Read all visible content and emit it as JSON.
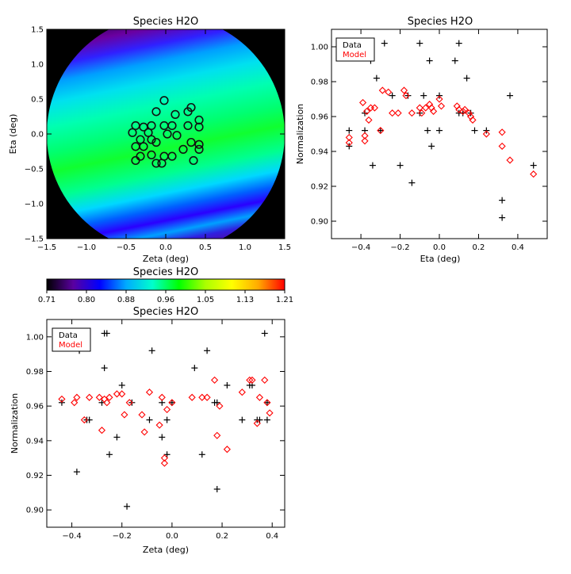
{
  "chart_data": [
    {
      "id": "map",
      "type": "heatmap",
      "title": "Species H2O",
      "xlabel": "Zeta (deg)",
      "ylabel": "Eta (deg)",
      "xlim": [
        -1.5,
        1.5
      ],
      "ylim": [
        -1.5,
        1.5
      ],
      "xticks": [
        -1.5,
        -1.0,
        -0.5,
        0.0,
        0.5,
        1.0,
        1.5
      ],
      "xtick_labels": [
        "−1.5",
        "−1.0",
        "−0.5",
        "0.0",
        "0.5",
        "1.0",
        "1.5"
      ],
      "yticks": [
        -1.5,
        -1.0,
        -0.5,
        0.0,
        0.5,
        1.0,
        1.5
      ],
      "ytick_labels": [
        "−1.5",
        "−1.0",
        "−0.5",
        "0.0",
        "0.5",
        "1.0",
        "1.5"
      ],
      "field_radius_deg": 1.5,
      "band_colors": [
        "#4a0070",
        "#2a30f0",
        "#00c8ff",
        "#00ffb0",
        "#00ff30"
      ],
      "circles": [
        [
          -0.38,
          0.12
        ],
        [
          -0.28,
          0.1
        ],
        [
          -0.18,
          0.12
        ],
        [
          -0.12,
          0.32
        ],
        [
          -0.02,
          0.48
        ],
        [
          0.12,
          0.28
        ],
        [
          0.28,
          0.32
        ],
        [
          0.32,
          0.38
        ],
        [
          0.42,
          0.2
        ],
        [
          0.42,
          0.1
        ],
        [
          -0.42,
          0.02
        ],
        [
          -0.22,
          0.02
        ],
        [
          -0.02,
          0.12
        ],
        [
          0.08,
          0.12
        ],
        [
          0.28,
          0.12
        ],
        [
          -0.32,
          -0.08
        ],
        [
          -0.18,
          -0.08
        ],
        [
          0.02,
          0.0
        ],
        [
          0.14,
          -0.02
        ],
        [
          -0.38,
          -0.18
        ],
        [
          -0.28,
          -0.18
        ],
        [
          -0.12,
          -0.12
        ],
        [
          0.22,
          -0.22
        ],
        [
          0.32,
          -0.12
        ],
        [
          0.42,
          -0.22
        ],
        [
          -0.32,
          -0.32
        ],
        [
          -0.18,
          -0.3
        ],
        [
          -0.02,
          -0.32
        ],
        [
          0.08,
          -0.32
        ],
        [
          -0.38,
          -0.38
        ],
        [
          -0.05,
          -0.42
        ],
        [
          -0.12,
          -0.42
        ],
        [
          0.35,
          -0.38
        ],
        [
          0.42,
          -0.15
        ]
      ]
    },
    {
      "id": "eta_plot",
      "type": "scatter",
      "title": "Species H2O",
      "xlabel": "Eta (deg)",
      "ylabel": "Normalization",
      "xlim": [
        -0.55,
        0.55
      ],
      "ylim": [
        0.89,
        1.01
      ],
      "xticks": [
        -0.4,
        -0.2,
        0.0,
        0.2,
        0.4
      ],
      "xtick_labels": [
        "−0.4",
        "−0.2",
        "0.0",
        "0.2",
        "0.4"
      ],
      "yticks": [
        0.9,
        0.92,
        0.94,
        0.96,
        0.98,
        1.0
      ],
      "ytick_labels": [
        "0.90",
        "0.92",
        "0.94",
        "0.96",
        "0.98",
        "1.00"
      ],
      "legend": {
        "position": "top-left",
        "entries": [
          {
            "label": "Data",
            "color": "#000000"
          },
          {
            "label": "Model",
            "color": "#ff0000"
          }
        ]
      },
      "series": [
        {
          "name": "Data",
          "marker": "plus",
          "color": "#000000",
          "points": [
            [
              -0.46,
              0.952
            ],
            [
              -0.46,
              0.943
            ],
            [
              -0.38,
              0.962
            ],
            [
              -0.38,
              0.952
            ],
            [
              -0.35,
              0.992
            ],
            [
              -0.34,
              0.932
            ],
            [
              -0.32,
              0.982
            ],
            [
              -0.3,
              0.952
            ],
            [
              -0.28,
              1.002
            ],
            [
              -0.24,
              0.972
            ],
            [
              -0.2,
              0.932
            ],
            [
              -0.16,
              0.972
            ],
            [
              -0.14,
              0.922
            ],
            [
              -0.1,
              1.002
            ],
            [
              -0.1,
              0.962
            ],
            [
              -0.08,
              0.972
            ],
            [
              -0.06,
              0.952
            ],
            [
              -0.05,
              0.992
            ],
            [
              -0.04,
              0.943
            ],
            [
              0.0,
              0.972
            ],
            [
              0.0,
              0.952
            ],
            [
              0.08,
              0.992
            ],
            [
              0.1,
              1.002
            ],
            [
              0.1,
              0.962
            ],
            [
              0.12,
              0.962
            ],
            [
              0.14,
              0.982
            ],
            [
              0.16,
              0.962
            ],
            [
              0.18,
              0.952
            ],
            [
              0.24,
              0.952
            ],
            [
              0.32,
              0.912
            ],
            [
              0.32,
              0.902
            ],
            [
              0.36,
              0.972
            ],
            [
              0.48,
              0.932
            ]
          ]
        },
        {
          "name": "Model",
          "marker": "diamond",
          "color": "#ff0000",
          "points": [
            [
              -0.46,
              0.948
            ],
            [
              -0.46,
              0.945
            ],
            [
              -0.39,
              0.968
            ],
            [
              -0.38,
              0.949
            ],
            [
              -0.38,
              0.946
            ],
            [
              -0.37,
              0.963
            ],
            [
              -0.36,
              0.958
            ],
            [
              -0.35,
              0.965
            ],
            [
              -0.33,
              0.965
            ],
            [
              -0.3,
              0.952
            ],
            [
              -0.29,
              0.975
            ],
            [
              -0.26,
              0.974
            ],
            [
              -0.24,
              0.962
            ],
            [
              -0.21,
              0.962
            ],
            [
              -0.18,
              0.975
            ],
            [
              -0.17,
              0.972
            ],
            [
              -0.14,
              0.962
            ],
            [
              -0.1,
              0.965
            ],
            [
              -0.09,
              0.962
            ],
            [
              -0.07,
              0.965
            ],
            [
              -0.05,
              0.967
            ],
            [
              -0.04,
              0.965
            ],
            [
              -0.03,
              0.963
            ],
            [
              0.0,
              0.97
            ],
            [
              0.01,
              0.966
            ],
            [
              0.09,
              0.966
            ],
            [
              0.1,
              0.964
            ],
            [
              0.12,
              0.963
            ],
            [
              0.13,
              0.964
            ],
            [
              0.15,
              0.962
            ],
            [
              0.16,
              0.96
            ],
            [
              0.17,
              0.958
            ],
            [
              0.24,
              0.95
            ],
            [
              0.32,
              0.951
            ],
            [
              0.32,
              0.943
            ],
            [
              0.36,
              0.935
            ],
            [
              0.48,
              0.927
            ]
          ]
        }
      ]
    },
    {
      "id": "zeta_plot",
      "type": "scatter",
      "title": "Species H2O",
      "xlabel": "Zeta (deg)",
      "ylabel": "Normalization",
      "xlim": [
        -0.5,
        0.45
      ],
      "ylim": [
        0.89,
        1.01
      ],
      "xticks": [
        -0.4,
        -0.2,
        0.0,
        0.2,
        0.4
      ],
      "xtick_labels": [
        "−0.4",
        "−0.2",
        "0.0",
        "0.2",
        "0.4"
      ],
      "yticks": [
        0.9,
        0.92,
        0.94,
        0.96,
        0.98,
        1.0
      ],
      "ytick_labels": [
        "0.90",
        "0.92",
        "0.94",
        "0.96",
        "0.98",
        "1.00"
      ],
      "legend": {
        "position": "top-left",
        "entries": [
          {
            "label": "Data",
            "color": "#000000"
          },
          {
            "label": "Model",
            "color": "#ff0000"
          }
        ]
      },
      "series": [
        {
          "name": "Data",
          "marker": "plus",
          "color": "#000000",
          "points": [
            [
              -0.44,
              0.962
            ],
            [
              -0.38,
              0.922
            ],
            [
              -0.37,
              0.992
            ],
            [
              -0.34,
              0.952
            ],
            [
              -0.33,
              0.952
            ],
            [
              -0.28,
              0.962
            ],
            [
              -0.27,
              0.982
            ],
            [
              -0.27,
              1.002
            ],
            [
              -0.26,
              1.002
            ],
            [
              -0.25,
              0.932
            ],
            [
              -0.22,
              0.942
            ],
            [
              -0.2,
              0.972
            ],
            [
              -0.18,
              0.902
            ],
            [
              -0.16,
              0.962
            ],
            [
              -0.09,
              0.952
            ],
            [
              -0.08,
              0.992
            ],
            [
              -0.04,
              0.962
            ],
            [
              -0.04,
              0.942
            ],
            [
              -0.02,
              0.952
            ],
            [
              -0.02,
              0.932
            ],
            [
              0.0,
              0.962
            ],
            [
              0.09,
              0.982
            ],
            [
              0.12,
              0.932
            ],
            [
              0.14,
              0.992
            ],
            [
              0.17,
              0.962
            ],
            [
              0.18,
              0.962
            ],
            [
              0.18,
              0.912
            ],
            [
              0.22,
              0.972
            ],
            [
              0.28,
              0.952
            ],
            [
              0.31,
              0.972
            ],
            [
              0.32,
              0.972
            ],
            [
              0.34,
              0.952
            ],
            [
              0.35,
              0.952
            ],
            [
              0.37,
              1.002
            ],
            [
              0.38,
              0.962
            ],
            [
              0.38,
              0.952
            ]
          ]
        },
        {
          "name": "Model",
          "marker": "diamond",
          "color": "#ff0000",
          "points": [
            [
              -0.44,
              0.964
            ],
            [
              -0.39,
              0.962
            ],
            [
              -0.38,
              0.965
            ],
            [
              -0.35,
              0.952
            ],
            [
              -0.33,
              0.965
            ],
            [
              -0.29,
              0.965
            ],
            [
              -0.28,
              0.946
            ],
            [
              -0.27,
              0.964
            ],
            [
              -0.26,
              0.962
            ],
            [
              -0.25,
              0.965
            ],
            [
              -0.22,
              0.967
            ],
            [
              -0.2,
              0.967
            ],
            [
              -0.19,
              0.955
            ],
            [
              -0.17,
              0.962
            ],
            [
              -0.12,
              0.955
            ],
            [
              -0.11,
              0.945
            ],
            [
              -0.09,
              0.968
            ],
            [
              -0.05,
              0.949
            ],
            [
              -0.04,
              0.965
            ],
            [
              -0.03,
              0.927
            ],
            [
              -0.03,
              0.93
            ],
            [
              -0.02,
              0.958
            ],
            [
              0.0,
              0.962
            ],
            [
              0.08,
              0.965
            ],
            [
              0.12,
              0.965
            ],
            [
              0.14,
              0.965
            ],
            [
              0.17,
              0.975
            ],
            [
              0.18,
              0.943
            ],
            [
              0.19,
              0.96
            ],
            [
              0.22,
              0.935
            ],
            [
              0.28,
              0.968
            ],
            [
              0.31,
              0.975
            ],
            [
              0.32,
              0.975
            ],
            [
              0.34,
              0.95
            ],
            [
              0.35,
              0.965
            ],
            [
              0.37,
              0.975
            ],
            [
              0.38,
              0.962
            ],
            [
              0.39,
              0.956
            ]
          ]
        }
      ]
    },
    {
      "id": "colorbar",
      "type": "colorbar",
      "title": "Species H2O",
      "range": [
        0.71,
        1.21
      ],
      "tick_labels": [
        "0.71",
        "0.80",
        "0.88",
        "0.96",
        "1.05",
        "1.13",
        "1.21"
      ],
      "stops": [
        "#000000",
        "#5a00a0",
        "#0000ff",
        "#00aaff",
        "#00ffcc",
        "#00ff00",
        "#aaff00",
        "#ffff00",
        "#ffaa00",
        "#ff0000"
      ]
    }
  ]
}
